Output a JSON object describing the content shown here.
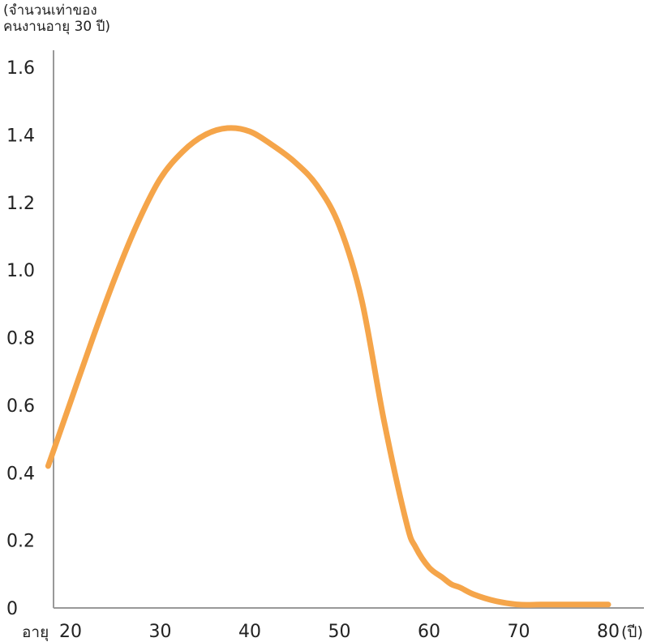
{
  "chart_data": {
    "type": "line",
    "ylabel": [
      "(จำนวนเท่าของ",
      "คนงานอายุ 30 ปี)"
    ],
    "xlabel_prefix": "อายุ",
    "x_unit": "(ปี)",
    "x_ticks": [
      20,
      30,
      40,
      50,
      60,
      70,
      80
    ],
    "x_tick_labels": [
      "20",
      "30",
      "40",
      "50",
      "60",
      "70",
      "80"
    ],
    "y_ticks": [
      0,
      0.2,
      0.4,
      0.6,
      0.8,
      1.0,
      1.2,
      1.4,
      1.6
    ],
    "y_tick_labels": [
      "0",
      "0.2",
      "0.4",
      "0.6",
      "0.8",
      "1.0",
      "1.2",
      "1.4",
      "1.6"
    ],
    "xlim": [
      17.5,
      80
    ],
    "ylim": [
      0,
      1.6
    ],
    "grid": false,
    "series": [
      {
        "color": "#F5A54A",
        "x": [
          17.5,
          20,
          22.5,
          25,
          27.5,
          30,
          32.5,
          35,
          37.5,
          40,
          42.5,
          45,
          47.5,
          50,
          52.5,
          55,
          57.5,
          58.5,
          60,
          61.5,
          62.5,
          63.5,
          65,
          67.5,
          70,
          72.5,
          75,
          77.5,
          80
        ],
        "y": [
          0.42,
          0.61,
          0.8,
          0.98,
          1.14,
          1.27,
          1.35,
          1.4,
          1.42,
          1.41,
          1.37,
          1.32,
          1.25,
          1.13,
          0.91,
          0.55,
          0.25,
          0.18,
          0.12,
          0.09,
          0.07,
          0.06,
          0.04,
          0.02,
          0.01,
          0.01,
          0.01,
          0.01,
          0.01
        ]
      }
    ]
  }
}
